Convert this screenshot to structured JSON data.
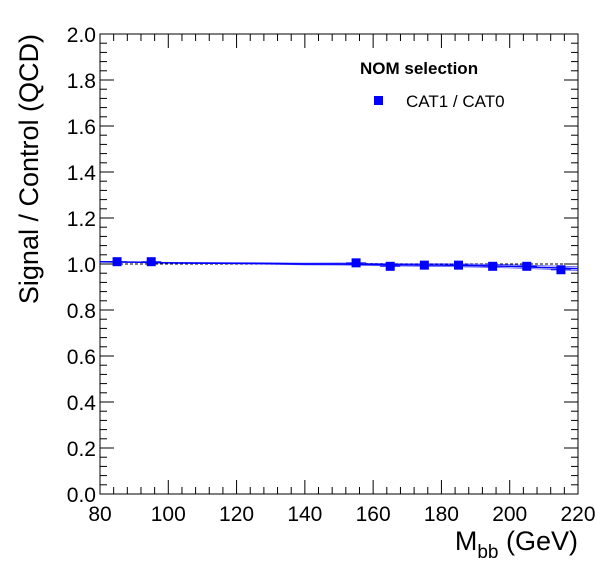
{
  "chart_data": {
    "type": "scatter",
    "title": "",
    "xlabel_main": "M",
    "xlabel_sub": "bb",
    "xlabel_unit": " (GeV)",
    "ylabel": "Signal / Control (QCD)",
    "xlim": [
      80,
      220
    ],
    "ylim": [
      0,
      2
    ],
    "x_ticks": [
      "80",
      "100",
      "120",
      "140",
      "160",
      "180",
      "200",
      "220"
    ],
    "y_ticks": [
      "0.0",
      "0.2",
      "0.4",
      "0.6",
      "0.8",
      "1.0",
      "1.2",
      "1.4",
      "1.6",
      "1.8",
      "2.0"
    ],
    "grid": false,
    "legend": {
      "position": "top-right",
      "title": "NOM selection",
      "entries": [
        "CAT1 / CAT0"
      ]
    },
    "reference_line": 1.0,
    "series": [
      {
        "name": "CAT1 / CAT0",
        "color": "#0000ff",
        "marker": "square",
        "x": [
          85,
          95,
          155,
          165,
          175,
          185,
          195,
          205,
          215
        ],
        "y": [
          1.01,
          1.01,
          1.005,
          0.99,
          0.995,
          0.995,
          0.99,
          0.99,
          0.975
        ]
      }
    ],
    "fit_curve": {
      "color": "#0000ff",
      "x": [
        80,
        90,
        100,
        110,
        120,
        130,
        140,
        150,
        160,
        170,
        180,
        190,
        200,
        210,
        220
      ],
      "y": [
        1.01,
        1.008,
        1.005,
        1.004,
        1.003,
        1.002,
        1.0,
        1.0,
        0.998,
        0.996,
        0.995,
        0.993,
        0.99,
        0.985,
        0.98
      ]
    }
  }
}
